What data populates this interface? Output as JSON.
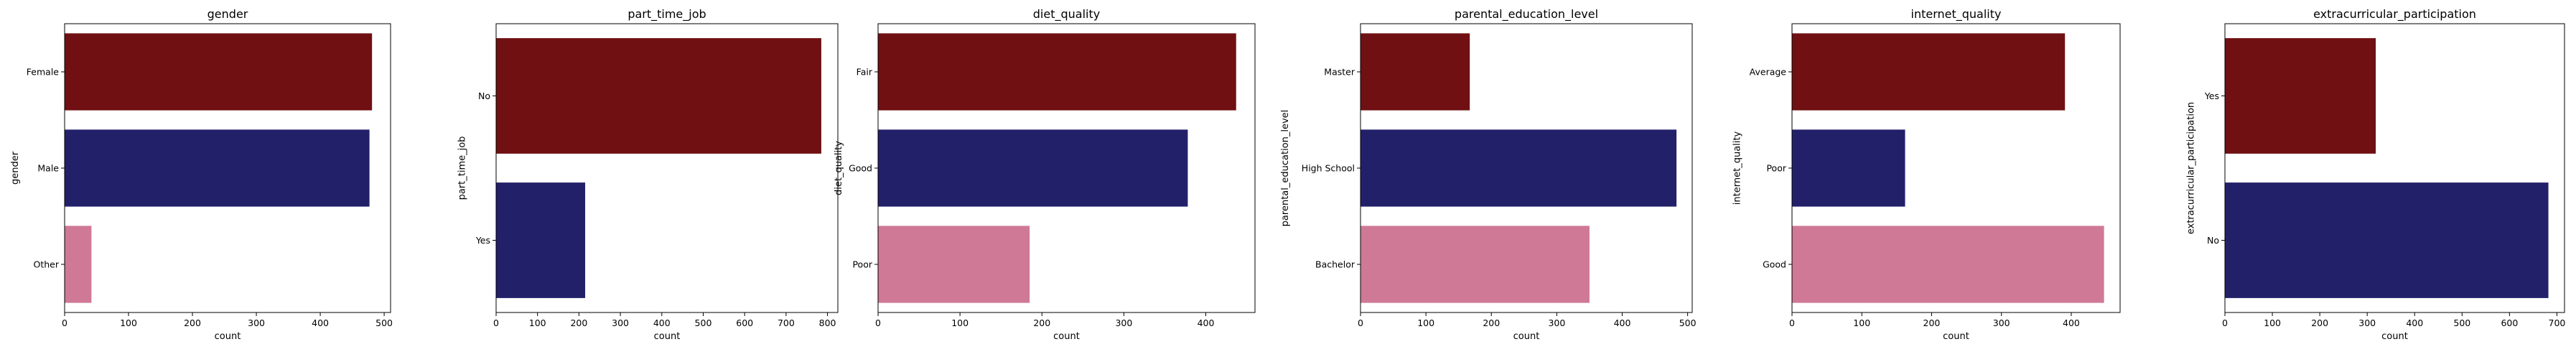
{
  "chart_data": [
    {
      "type": "bar",
      "orientation": "horizontal",
      "title": "gender",
      "xlabel": "count",
      "ylabel": "gender",
      "categories": [
        "Female",
        "Male",
        "Other"
      ],
      "values": [
        481,
        477,
        42
      ],
      "xlim": [
        0,
        510
      ],
      "xticks": [
        0,
        100,
        200,
        300,
        400,
        500
      ],
      "colors": [
        "#701013",
        "#23206a",
        "#cf7996"
      ]
    },
    {
      "type": "bar",
      "orientation": "horizontal",
      "title": "part_time_job",
      "xlabel": "count",
      "ylabel": "part_time_job",
      "categories": [
        "No",
        "Yes"
      ],
      "values": [
        785,
        215
      ],
      "xlim": [
        0,
        825
      ],
      "xticks": [
        0,
        100,
        200,
        300,
        400,
        500,
        600,
        700,
        800
      ],
      "colors": [
        "#701013",
        "#23206a"
      ]
    },
    {
      "type": "bar",
      "orientation": "horizontal",
      "title": "diet_quality",
      "xlabel": "count",
      "ylabel": "diet_quality",
      "categories": [
        "Fair",
        "Good",
        "Poor"
      ],
      "values": [
        437,
        378,
        185
      ],
      "xlim": [
        0,
        460
      ],
      "xticks": [
        0,
        100,
        200,
        300,
        400
      ],
      "colors": [
        "#701013",
        "#23206a",
        "#cf7996"
      ]
    },
    {
      "type": "bar",
      "orientation": "horizontal",
      "title": "parental_education_level",
      "xlabel": "count",
      "ylabel": "parental_education_level",
      "categories": [
        "Master",
        "High School",
        "Bachelor"
      ],
      "values": [
        167,
        483,
        350
      ],
      "xlim": [
        0,
        507
      ],
      "xticks": [
        0,
        100,
        200,
        300,
        400,
        500
      ],
      "colors": [
        "#701013",
        "#23206a",
        "#cf7996"
      ]
    },
    {
      "type": "bar",
      "orientation": "horizontal",
      "title": "internet_quality",
      "xlabel": "count",
      "ylabel": "internet_quality",
      "categories": [
        "Average",
        "Poor",
        "Good"
      ],
      "values": [
        391,
        162,
        447
      ],
      "xlim": [
        0,
        470
      ],
      "xticks": [
        0,
        100,
        200,
        300,
        400
      ],
      "colors": [
        "#701013",
        "#23206a",
        "#cf7996"
      ]
    },
    {
      "type": "bar",
      "orientation": "horizontal",
      "title": "extracurricular_participation",
      "xlabel": "count",
      "ylabel": "extracurricular_participation",
      "categories": [
        "Yes",
        "No"
      ],
      "values": [
        318,
        682
      ],
      "xlim": [
        0,
        716
      ],
      "xticks": [
        0,
        100,
        200,
        300,
        400,
        500,
        600,
        700
      ],
      "colors": [
        "#701013",
        "#23206a"
      ]
    }
  ]
}
